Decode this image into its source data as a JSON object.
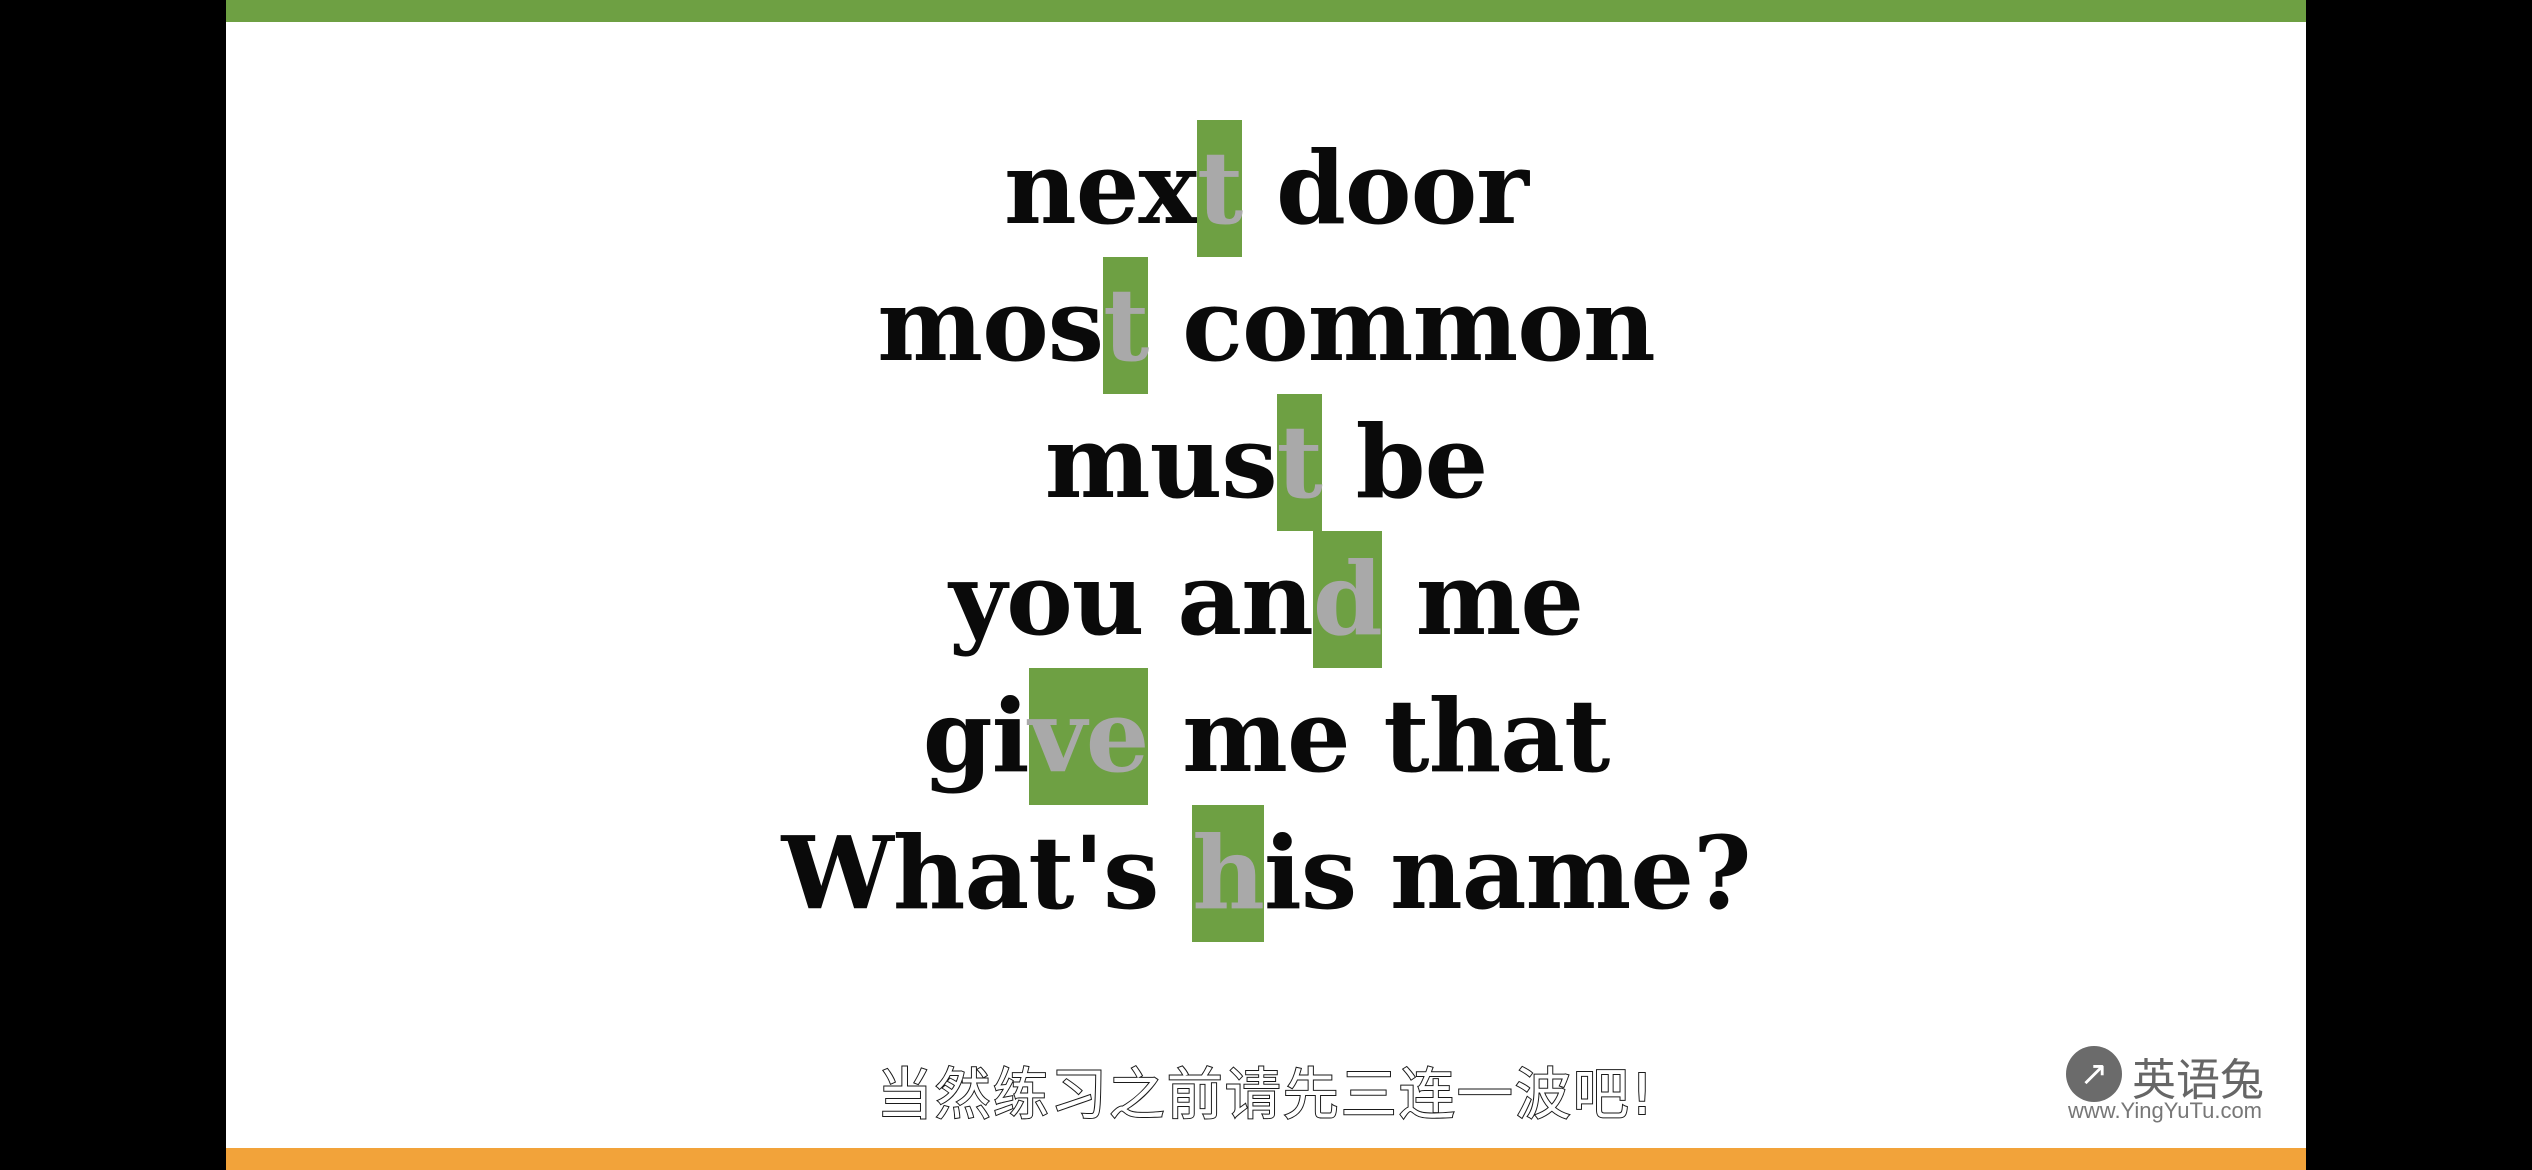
{
  "colors": {
    "accent_green": "#6ea043",
    "accent_orange": "#f2a33a",
    "highlight_letter": "#a9a9a9",
    "text": "#0a0a0a"
  },
  "phrases": [
    {
      "before": "nex",
      "highlight": "t",
      "after": " door"
    },
    {
      "before": "mos",
      "highlight": "t",
      "after": " common"
    },
    {
      "before": "mus",
      "highlight": "t",
      "after": " be"
    },
    {
      "before": "you an",
      "highlight": "d",
      "after": " me"
    },
    {
      "before": "gi",
      "highlight": "ve",
      "after": " me that"
    },
    {
      "before": "What's ",
      "highlight": "h",
      "after": "is name?"
    }
  ],
  "subtitle": "当然练习之前请先三连一波吧!",
  "watermark": {
    "icon": "rabbit-icon",
    "brand": "英语兔",
    "url": "www.YingYuTu.com"
  }
}
